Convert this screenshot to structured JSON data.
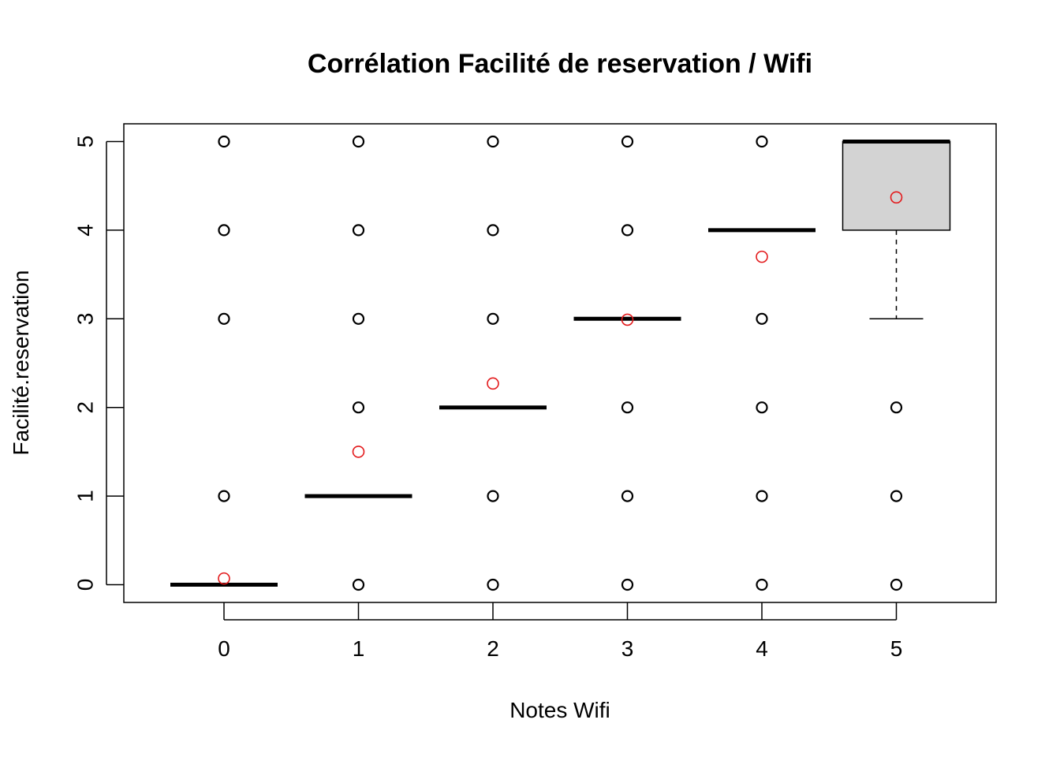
{
  "chart_data": {
    "type": "box",
    "title": "Corrélation Facilité de reservation / Wifi",
    "xlabel": "Notes Wifi",
    "ylabel": "Facilité.reservation",
    "categories": [
      "0",
      "1",
      "2",
      "3",
      "4",
      "5"
    ],
    "x_ticks": [
      "0",
      "1",
      "2",
      "3",
      "4",
      "5"
    ],
    "y_ticks": [
      "0",
      "1",
      "2",
      "3",
      "4",
      "5"
    ],
    "ylim": [
      -0.2,
      5.2
    ],
    "grid": false,
    "legend": "none",
    "boxes": [
      {
        "category": "0",
        "min": 0,
        "q1": 0,
        "median": 0,
        "q3": 0,
        "max": 0,
        "mean": 0.07,
        "outliers": [
          1,
          3,
          4,
          5
        ]
      },
      {
        "category": "1",
        "min": 1,
        "q1": 1,
        "median": 1,
        "q3": 1,
        "max": 1,
        "mean": 1.5,
        "outliers": [
          0,
          2,
          3,
          4,
          5
        ]
      },
      {
        "category": "2",
        "min": 2,
        "q1": 2,
        "median": 2,
        "q3": 2,
        "max": 2,
        "mean": 2.27,
        "outliers": [
          0,
          1,
          3,
          4,
          5
        ]
      },
      {
        "category": "3",
        "min": 3,
        "q1": 3,
        "median": 3,
        "q3": 3,
        "max": 3,
        "mean": 2.99,
        "outliers": [
          0,
          1,
          2,
          4,
          5
        ]
      },
      {
        "category": "4",
        "min": 4,
        "q1": 4,
        "median": 4,
        "q3": 4,
        "max": 4,
        "mean": 3.7,
        "outliers": [
          0,
          1,
          2,
          3,
          5
        ]
      },
      {
        "category": "5",
        "min": 3,
        "q1": 4,
        "median": 5,
        "q3": 5,
        "max": 5,
        "mean": 4.37,
        "outliers": [
          0,
          1,
          2
        ]
      }
    ],
    "colors": {
      "box_fill": "#d3d3d3",
      "mean_marker": "#e31a1c",
      "ink": "#000000"
    }
  }
}
